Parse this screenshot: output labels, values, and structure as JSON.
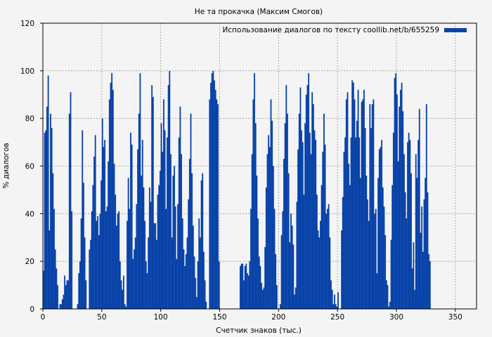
{
  "chart_data": {
    "type": "bar",
    "title": "Не та прокачка (Максим Смогов)",
    "xlabel": "Счетчик знаков (тыс.)",
    "ylabel": "% диалогов",
    "xlim": [
      0,
      368
    ],
    "ylim": [
      0,
      120
    ],
    "x_ticks": [
      0,
      50,
      100,
      150,
      200,
      250,
      300,
      350
    ],
    "y_ticks": [
      0,
      20,
      40,
      60,
      80,
      100,
      120
    ],
    "grid": true,
    "legend_position": "top-right",
    "bar_color": "#0842a8",
    "series": [
      {
        "name": "Использование диалогов по тексту coollib.net/b/655259",
        "x_start": 0,
        "x_step": 1,
        "values": [
          16,
          74,
          75,
          85,
          98,
          33,
          82,
          76,
          57,
          42,
          25,
          17,
          10,
          0,
          2,
          2,
          4,
          6,
          14,
          10,
          12,
          12,
          82,
          91,
          41,
          0,
          0,
          0,
          0,
          2,
          15,
          20,
          38,
          75,
          53,
          30,
          12,
          0,
          0,
          25,
          29,
          41,
          52,
          64,
          73,
          37,
          39,
          31,
          40,
          54,
          80,
          68,
          71,
          41,
          43,
          62,
          88,
          95,
          99,
          92,
          61,
          48,
          35,
          40,
          41,
          20,
          12,
          8,
          14,
          2,
          1,
          37,
          55,
          42,
          74,
          69,
          21,
          25,
          30,
          44,
          67,
          82,
          99,
          56,
          71,
          51,
          37,
          20,
          15,
          30,
          51,
          45,
          94,
          89,
          36,
          36,
          29,
          48,
          52,
          58,
          78,
          66,
          88,
          75,
          42,
          72,
          94,
          100,
          65,
          30,
          56,
          60,
          43,
          21,
          44,
          72,
          85,
          65,
          38,
          25,
          18,
          23,
          30,
          46,
          63,
          82,
          57,
          35,
          22,
          13,
          5,
          20,
          38,
          30,
          54,
          57,
          24,
          12,
          3,
          0,
          0,
          88,
          95,
          99,
          100,
          96,
          92,
          88,
          86,
          20,
          0,
          0,
          0,
          0,
          0,
          0,
          0,
          0,
          0,
          0,
          0,
          0,
          0,
          0,
          0,
          0,
          0,
          18,
          19,
          19,
          12,
          18,
          19,
          15,
          14,
          20,
          42,
          65,
          88,
          99,
          78,
          56,
          38,
          22,
          18,
          11,
          8,
          9,
          26,
          51,
          65,
          73,
          68,
          88,
          79,
          60,
          42,
          23,
          10,
          0,
          0,
          2,
          31,
          41,
          63,
          78,
          94,
          82,
          57,
          28,
          40,
          35,
          27,
          6,
          9,
          45,
          67,
          82,
          93,
          75,
          70,
          48,
          78,
          90,
          94,
          99,
          74,
          65,
          91,
          86,
          75,
          71,
          48,
          33,
          30,
          37,
          52,
          66,
          82,
          69,
          40,
          42,
          44,
          30,
          12,
          8,
          2,
          6,
          2,
          1,
          7,
          0,
          0,
          33,
          47,
          66,
          72,
          88,
          91,
          61,
          52,
          72,
          96,
          95,
          88,
          72,
          79,
          92,
          72,
          55,
          87,
          88,
          92,
          76,
          56,
          46,
          37,
          86,
          76,
          86,
          88,
          40,
          42,
          15,
          55,
          67,
          68,
          71,
          51,
          43,
          31,
          12,
          10,
          1,
          3,
          29,
          52,
          74,
          97,
          99,
          90,
          62,
          85,
          92,
          95,
          83,
          65,
          49,
          38,
          70,
          74,
          71,
          57,
          17,
          28,
          8,
          65,
          55,
          71,
          84,
          32,
          43,
          24,
          46,
          55,
          86,
          49,
          23,
          20
        ]
      }
    ]
  }
}
